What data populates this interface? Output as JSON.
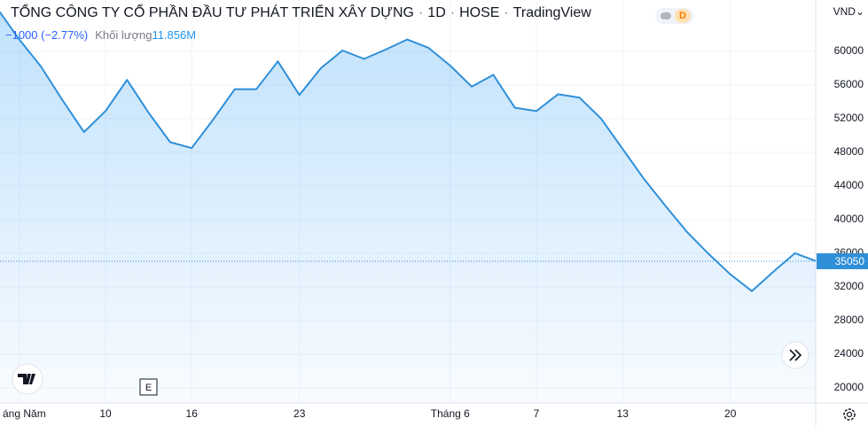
{
  "chart_data": {
    "type": "area",
    "title": "TỔNG CÔNG TY CỔ PHẦN ĐẦU TƯ PHÁT TRIỂN XÂY DỰNG",
    "interval": "1D",
    "exchange": "HOSE",
    "source": "TradingView",
    "change": "−1000 (−2.77%)",
    "volume_label": "Khối lượng",
    "volume": "11.856M",
    "currency": "VND",
    "badge": "D",
    "marker": "E",
    "categories": [
      null,
      "áng Năm",
      null,
      null,
      null,
      "10",
      null,
      null,
      null,
      "16",
      null,
      null,
      null,
      null,
      "23",
      null,
      null,
      null,
      null,
      null,
      null,
      "Tháng 6",
      null,
      null,
      null,
      "7",
      null,
      null,
      null,
      "13",
      null,
      null,
      null,
      null,
      "20",
      null,
      null,
      null,
      null
    ],
    "values": [
      65000,
      61400,
      58200,
      54200,
      50400,
      52900,
      56600,
      52700,
      49200,
      48500,
      51900,
      55500,
      55500,
      58800,
      54800,
      58000,
      60100,
      59100,
      60200,
      61400,
      60400,
      58300,
      55800,
      57200,
      53300,
      52900,
      54900,
      54500,
      52000,
      48400,
      44800,
      41600,
      38500,
      35900,
      33500,
      31500,
      33800,
      36000,
      35050
    ],
    "color": "#2f8fd8",
    "ylim": [
      18200,
      66100
    ],
    "yticks": [
      20000,
      24000,
      28000,
      32000,
      36000,
      40000,
      44000,
      48000,
      52000,
      56000,
      60000
    ],
    "grid": true
  }
}
